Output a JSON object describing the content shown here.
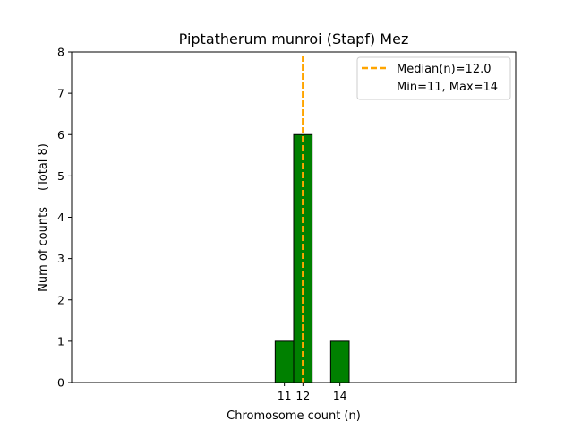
{
  "chart_data": {
    "type": "bar",
    "title": "Piptatherum munroi (Stapf) Mez",
    "xlabel": "Chromosome count (n)",
    "ylabel": "Num of counts",
    "ylabel_total": "(Total 8)",
    "bars": [
      {
        "x": 11,
        "count": 1
      },
      {
        "x": 12,
        "count": 6
      },
      {
        "x": 13,
        "count": 0
      },
      {
        "x": 14,
        "count": 1
      },
      {
        "x": 15,
        "count": 0
      },
      {
        "x": 16,
        "count": 0
      }
    ],
    "x_ticks": [
      11,
      12,
      14
    ],
    "y_ticks": [
      0,
      1,
      2,
      3,
      4,
      5,
      6,
      7,
      8
    ],
    "xlim": [
      -0.5,
      23.5
    ],
    "ylim": [
      0,
      8
    ],
    "median": 12.0,
    "legend": {
      "placement": "top-right",
      "median_label": "Median(n)=12.0",
      "range_label": "Min=11, Max=14"
    },
    "colors": {
      "bar_fill": "#008000",
      "bar_edge": "#000000",
      "median_line": "#ffa500"
    }
  }
}
